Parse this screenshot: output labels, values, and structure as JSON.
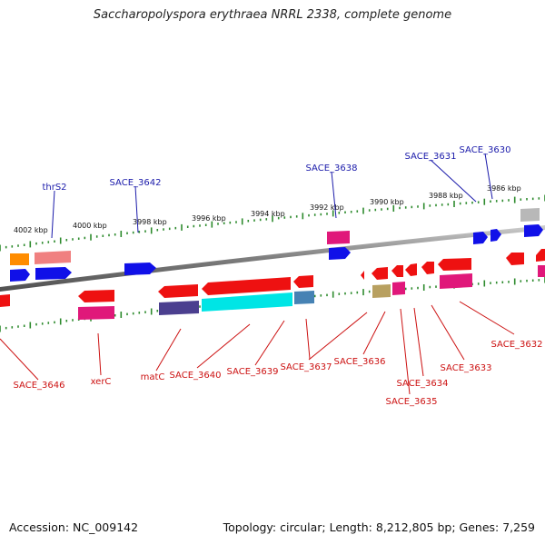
{
  "title": "Saccharopolyspora erythraea NRRL 2338, complete genome",
  "footer": {
    "accession": "Accession: NC_009142",
    "info": "Topology: circular; Length: 8,212,805 bp; Genes: 7,259"
  },
  "colors": {
    "backbone": "#8a8a8a",
    "tick": "#2e8b2e",
    "forward_label": "#1a1aaa",
    "reverse_label": "#cc1111"
  },
  "scale_labels": [
    "4002 kbp",
    "4000 kbp",
    "3998 kbp",
    "3996 kbp",
    "3994 kbp",
    "3992 kbp",
    "3990 kbp",
    "3988 kbp",
    "3986 kbp"
  ],
  "forward_genes": [
    "thrS2",
    "SACE_3642",
    "SACE_3638",
    "SACE_3631",
    "SACE_3630"
  ],
  "reverse_genes": [
    "SACE_3646",
    "xerC",
    "matC",
    "SACE_3640",
    "SACE_3639",
    "SACE_3637",
    "SACE_3636",
    "SACE_3634",
    "SACE_3635",
    "SACE_3633",
    "SACE_3632"
  ]
}
